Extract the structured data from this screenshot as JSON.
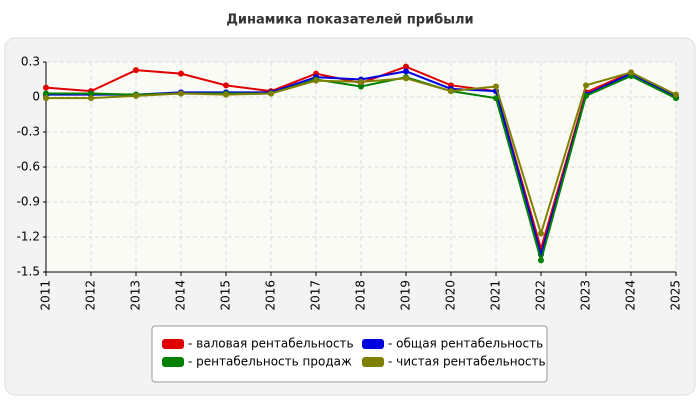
{
  "chart_data": {
    "type": "line",
    "title": "Динамика показателей прибыли",
    "categories": [
      "2011",
      "2012",
      "2013",
      "2014",
      "2015",
      "2016",
      "2017",
      "2018",
      "2019",
      "2020",
      "2021",
      "2022",
      "2023",
      "2024",
      "2025"
    ],
    "series": [
      {
        "name": "- валовая рентабельность",
        "color": "#e00000",
        "values": [
          0.08,
          0.05,
          0.23,
          0.2,
          0.1,
          0.05,
          0.2,
          0.12,
          0.26,
          0.1,
          0.05,
          -1.3,
          0.04,
          0.21,
          0.01
        ]
      },
      {
        "name": "- общая рентабельность",
        "color": "#0000e0",
        "values": [
          0.02,
          0.02,
          0.02,
          0.04,
          0.04,
          0.04,
          0.17,
          0.15,
          0.22,
          0.07,
          0.05,
          -1.35,
          0.02,
          0.2,
          0
        ]
      },
      {
        "name": "- рентабельность продаж",
        "color": "#008000",
        "values": [
          0.03,
          0.03,
          0.02,
          0.03,
          0.03,
          0.03,
          0.15,
          0.09,
          0.17,
          0.05,
          -0.01,
          -1.4,
          0.01,
          0.18,
          -0.01
        ]
      },
      {
        "name": "- чистая рентабельность",
        "color": "#808000",
        "values": [
          -0.01,
          -0.01,
          0.01,
          0.03,
          0.02,
          0.03,
          0.14,
          0.13,
          0.16,
          0.05,
          0.09,
          -1.17,
          0.1,
          0.21,
          0.02
        ]
      }
    ],
    "ylim": [
      -1.5,
      0.3
    ],
    "yticks": [
      0.3,
      0,
      -0.3,
      -0.6,
      -0.9,
      -1.2,
      -1.5
    ],
    "grid": true
  }
}
